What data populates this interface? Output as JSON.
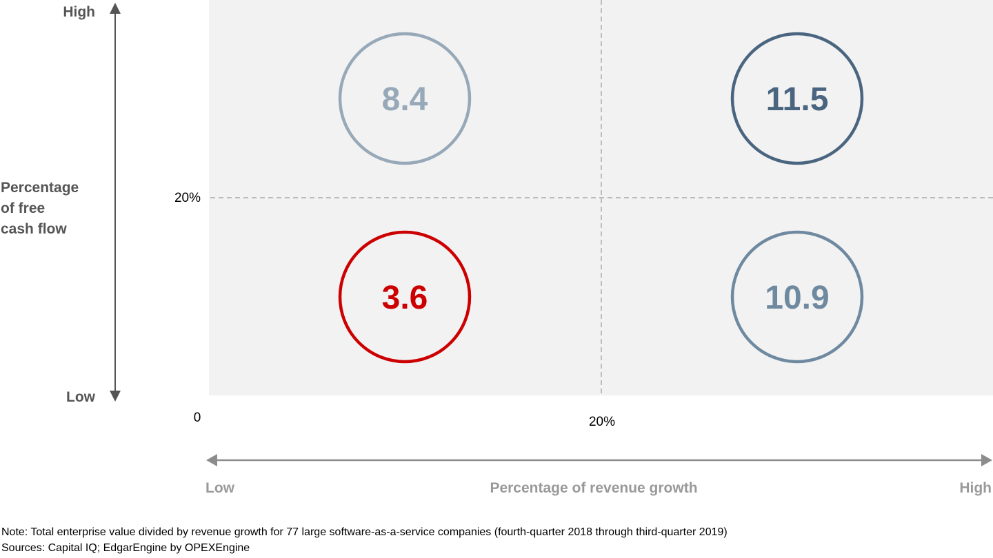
{
  "chart_data": {
    "type": "scatter",
    "chart_kind": "2x2 matrix",
    "x_axis": {
      "label": "Percentage of revenue growth",
      "low_label": "Low",
      "high_label": "High",
      "ticks": [
        "0",
        "20%"
      ],
      "threshold": "20%"
    },
    "y_axis": {
      "label_lines": [
        "Percentage",
        "of free",
        "cash flow"
      ],
      "low_label": "Low",
      "high_label": "High",
      "ticks": [
        "20%"
      ],
      "threshold": "20%"
    },
    "grid": false,
    "quadrants": [
      {
        "x": "Low",
        "y": "High",
        "value": "8.4",
        "color": "#97a9b8"
      },
      {
        "x": "High",
        "y": "High",
        "value": "11.5",
        "color": "#4a6580"
      },
      {
        "x": "Low",
        "y": "Low",
        "value": "3.6",
        "color": "#cc0000"
      },
      {
        "x": "High",
        "y": "Low",
        "value": "10.9",
        "color": "#6f8aa0"
      }
    ]
  },
  "footer": {
    "note": "Note: Total enterprise value divided by revenue growth for 77 large software-as-a-service companies (fourth-quarter 2018 through third-quarter 2019)",
    "sources": "Sources: Capital IQ; EdgarEngine by OPEXEngine"
  },
  "colors": {
    "plot_bg": "#f2f2f2",
    "axis_dark": "#555555",
    "axis_light": "#8c8c8c"
  }
}
